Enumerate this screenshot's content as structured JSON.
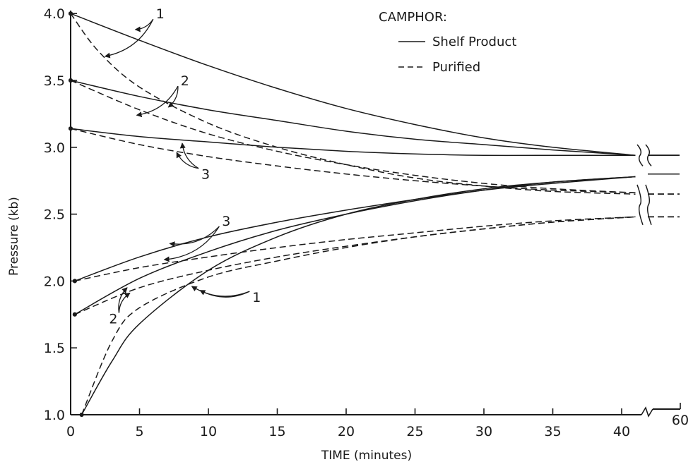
{
  "chart_data": {
    "type": "line",
    "title": "",
    "xlabel": "TIME (minutes)",
    "ylabel": "Pressure (kb)",
    "xlim": [
      0,
      44
    ],
    "ylim": [
      1.0,
      4.0
    ],
    "xticks": [
      0,
      5,
      10,
      15,
      20,
      25,
      30,
      35,
      40
    ],
    "xtick_labels": [
      "0",
      "5",
      "10",
      "15",
      "20",
      "25",
      "30",
      "35",
      "40"
    ],
    "xtick_break_label": "60",
    "yticks": [
      1.0,
      1.5,
      2.0,
      2.5,
      3.0,
      3.5,
      4.0
    ],
    "ytick_labels": [
      "1.0",
      "1.5",
      "2.0",
      "2.5",
      "3.0",
      "3.5",
      "4.0"
    ],
    "legend": {
      "title": "CAMPHOR:",
      "position": "top-right",
      "entries": [
        {
          "label": "Shelf Product",
          "style": "solid"
        },
        {
          "label": "Purified",
          "style": "dashed"
        }
      ]
    },
    "grid": false,
    "series": [
      {
        "style": "solid",
        "group": "decreasing",
        "run": "1",
        "x": [
          0,
          5,
          10,
          15,
          20,
          25,
          30,
          35,
          41
        ],
        "y": [
          4.0,
          3.8,
          3.61,
          3.44,
          3.29,
          3.17,
          3.07,
          3.0,
          2.94
        ],
        "end_y": 2.94
      },
      {
        "style": "solid",
        "group": "decreasing",
        "run": "2",
        "x": [
          0,
          5,
          10,
          15,
          20,
          25,
          30,
          35,
          41
        ],
        "y": [
          3.5,
          3.38,
          3.28,
          3.2,
          3.12,
          3.06,
          3.02,
          2.98,
          2.94
        ],
        "end_y": 2.94
      },
      {
        "style": "solid",
        "group": "decreasing",
        "run": "3",
        "x": [
          0,
          5,
          10,
          15,
          20,
          25,
          30,
          35,
          41
        ],
        "y": [
          3.14,
          3.08,
          3.04,
          3.0,
          2.97,
          2.95,
          2.94,
          2.94,
          2.94
        ],
        "end_y": 2.94
      },
      {
        "style": "dashed",
        "group": "decreasing",
        "run": "1",
        "x": [
          0,
          2,
          5,
          10,
          15,
          20,
          25,
          30,
          35,
          41
        ],
        "y": [
          4.0,
          3.72,
          3.45,
          3.18,
          3.0,
          2.87,
          2.77,
          2.71,
          2.67,
          2.65
        ],
        "end_y": 2.65
      },
      {
        "style": "dashed",
        "group": "decreasing",
        "run": "2",
        "x": [
          0,
          5,
          10,
          15,
          20,
          25,
          30,
          35,
          41
        ],
        "y": [
          3.5,
          3.28,
          3.1,
          2.97,
          2.87,
          2.79,
          2.73,
          2.69,
          2.66
        ],
        "end_y": 2.65
      },
      {
        "style": "dashed",
        "group": "decreasing",
        "run": "3",
        "x": [
          0,
          5,
          10,
          15,
          20,
          25,
          30,
          35,
          41
        ],
        "y": [
          3.14,
          3.02,
          2.93,
          2.86,
          2.8,
          2.75,
          2.71,
          2.68,
          2.66
        ],
        "end_y": 2.65
      },
      {
        "style": "solid",
        "group": "increasing",
        "run": "1",
        "x": [
          0.8,
          3,
          5,
          10,
          15,
          20,
          25,
          30,
          35,
          41
        ],
        "y": [
          1.0,
          1.4,
          1.68,
          2.08,
          2.33,
          2.5,
          2.61,
          2.69,
          2.74,
          2.78
        ],
        "end_y": 2.8
      },
      {
        "style": "solid",
        "group": "increasing",
        "run": "2",
        "x": [
          0.3,
          5,
          10,
          15,
          20,
          25,
          30,
          35,
          41
        ],
        "y": [
          1.75,
          2.02,
          2.22,
          2.38,
          2.5,
          2.6,
          2.68,
          2.74,
          2.78
        ],
        "end_y": 2.8
      },
      {
        "style": "solid",
        "group": "increasing",
        "run": "3",
        "x": [
          0.3,
          5,
          10,
          15,
          20,
          25,
          30,
          35,
          41
        ],
        "y": [
          2.0,
          2.18,
          2.33,
          2.44,
          2.53,
          2.61,
          2.68,
          2.73,
          2.78
        ],
        "end_y": 2.8
      },
      {
        "style": "dashed",
        "group": "increasing",
        "run": "1",
        "x": [
          0.8,
          3,
          5,
          10,
          15,
          20,
          25,
          30,
          35,
          41
        ],
        "y": [
          1.0,
          1.55,
          1.8,
          2.03,
          2.15,
          2.25,
          2.33,
          2.39,
          2.44,
          2.48
        ],
        "end_y": 2.48
      },
      {
        "style": "dashed",
        "group": "increasing",
        "run": "2",
        "x": [
          0.3,
          5,
          10,
          15,
          20,
          25,
          30,
          35,
          41
        ],
        "y": [
          1.75,
          1.95,
          2.08,
          2.18,
          2.26,
          2.33,
          2.39,
          2.44,
          2.48
        ],
        "end_y": 2.48
      },
      {
        "style": "dashed",
        "group": "increasing",
        "run": "3",
        "x": [
          0.3,
          5,
          10,
          15,
          20,
          25,
          30,
          35,
          41
        ],
        "y": [
          2.0,
          2.1,
          2.18,
          2.25,
          2.31,
          2.36,
          2.41,
          2.45,
          2.48
        ],
        "end_y": 2.48
      }
    ],
    "annotations": [
      {
        "text": "1",
        "x": 6.5,
        "y": 4.0,
        "targets": [
          [
            4.7,
            3.88
          ],
          [
            2.5,
            3.68
          ]
        ]
      },
      {
        "text": "2",
        "x": 8.3,
        "y": 3.5,
        "targets": [
          [
            7.1,
            3.3
          ],
          [
            4.8,
            3.24
          ]
        ]
      },
      {
        "text": "3",
        "x": 9.8,
        "y": 2.8,
        "targets": [
          [
            8.1,
            3.03
          ],
          [
            7.7,
            2.96
          ]
        ]
      },
      {
        "text": "3",
        "x": 11.3,
        "y": 2.45,
        "targets": [
          [
            7.2,
            2.28
          ],
          [
            6.8,
            2.16
          ]
        ]
      },
      {
        "text": "2",
        "x": 3.1,
        "y": 1.72,
        "targets": [
          [
            4.1,
            1.95
          ],
          [
            4.3,
            1.91
          ]
        ]
      },
      {
        "text": "1",
        "x": 13.5,
        "y": 1.88,
        "targets": [
          [
            8.8,
            1.96
          ],
          [
            9.4,
            1.93
          ]
        ]
      }
    ]
  }
}
